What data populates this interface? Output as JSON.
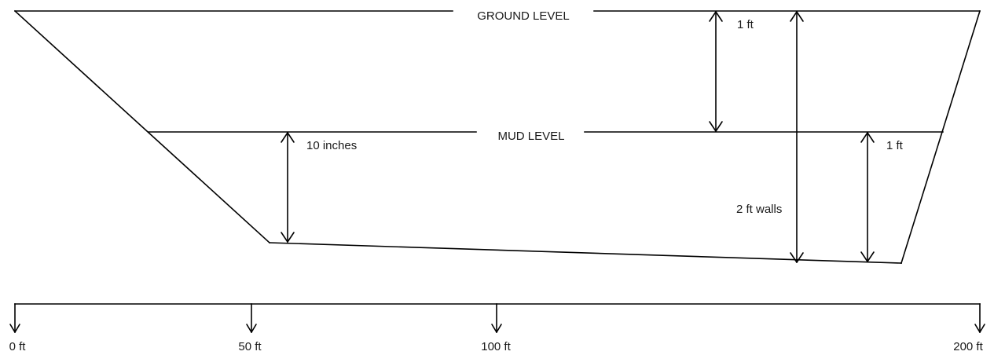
{
  "levels": {
    "ground": "GROUND LEVEL",
    "mud": "MUD LEVEL"
  },
  "dimensions": {
    "ground_to_mud": "1 ft",
    "left_depth": "10 inches",
    "right_depth": "1 ft",
    "wall_height": "2 ft walls"
  },
  "scale": {
    "ticks": [
      "0 ft",
      "50 ft",
      "100 ft",
      "200 ft"
    ]
  }
}
